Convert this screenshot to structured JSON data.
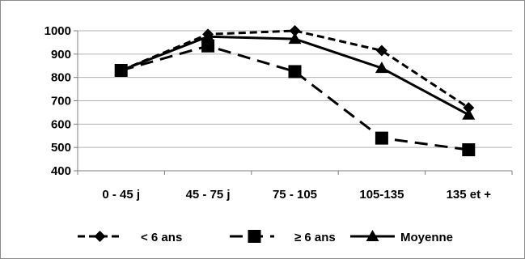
{
  "chart_data": {
    "type": "line",
    "categories": [
      "0 - 45 j",
      "45 - 75 j",
      "75 - 105",
      "105-135",
      "135 et +"
    ],
    "ylim": [
      400,
      1000
    ],
    "yticks": [
      400,
      500,
      600,
      700,
      800,
      900,
      1000
    ],
    "grid": true,
    "legend_position": "bottom",
    "series": [
      {
        "name": "< 6 ans",
        "values": [
          830,
          985,
          1000,
          915,
          670
        ],
        "marker": "diamond",
        "dash": "short-dash",
        "color": "#000000"
      },
      {
        "name": "≥ 6 ans",
        "values": [
          830,
          935,
          825,
          540,
          490
        ],
        "marker": "square",
        "dash": "long-dash",
        "color": "#000000"
      },
      {
        "name": "Moyenne",
        "values": [
          830,
          975,
          965,
          840,
          640
        ],
        "marker": "triangle",
        "dash": "solid",
        "color": "#000000"
      }
    ]
  }
}
